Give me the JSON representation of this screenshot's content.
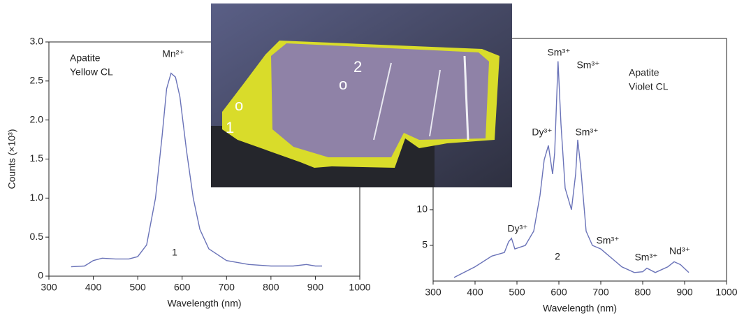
{
  "chart_data": [
    {
      "type": "line",
      "x_label": "Wavelength (nm)",
      "y_label": "Counts (×10³)",
      "annotations": [
        "Apatite",
        "Yellow CL",
        "Mn²⁺",
        "1"
      ],
      "x": [
        350,
        380,
        400,
        420,
        450,
        480,
        500,
        520,
        540,
        555,
        565,
        575,
        585,
        595,
        610,
        625,
        640,
        660,
        700,
        750,
        800,
        850,
        880,
        900,
        915
      ],
      "values": [
        0.12,
        0.13,
        0.2,
        0.23,
        0.22,
        0.22,
        0.25,
        0.4,
        1.0,
        1.8,
        2.4,
        2.6,
        2.55,
        2.3,
        1.6,
        1.0,
        0.6,
        0.35,
        0.2,
        0.15,
        0.13,
        0.13,
        0.15,
        0.13,
        0.13
      ],
      "color": "#6a73b8",
      "xlim": [
        300,
        1000
      ],
      "xticks": [
        300,
        400,
        500,
        600,
        700,
        800,
        900,
        1000
      ],
      "ylim": [
        0,
        3
      ],
      "yticks": [
        0,
        0.5,
        {
          "value": 1,
          "label": "1.0"
        },
        1.5,
        {
          "value": 2,
          "label": "2.0"
        },
        2.5,
        {
          "value": 3,
          "label": "3.0"
        }
      ]
    },
    {
      "type": "line",
      "x_label": "Wavelength (nm)",
      "annotations": [
        "Apatite",
        "Violet CL",
        "Sm³⁺",
        "Sm³⁺",
        "Dy³⁺",
        "Sm³⁺",
        "Dy³⁺",
        "Sm³⁺",
        "2",
        "Sm³⁺",
        "Nd³⁺"
      ],
      "x": [
        350,
        400,
        440,
        470,
        480,
        487,
        495,
        520,
        540,
        555,
        565,
        575,
        585,
        590,
        598,
        605,
        615,
        630,
        640,
        645,
        652,
        665,
        680,
        700,
        710,
        730,
        750,
        780,
        800,
        810,
        830,
        860,
        875,
        890,
        910
      ],
      "values": [
        0.5,
        2,
        3.5,
        4,
        5.5,
        6,
        4.5,
        5,
        7,
        12,
        17,
        19,
        15,
        18,
        30.8,
        22,
        13,
        10,
        15,
        19.8,
        16,
        7,
        5,
        4.5,
        4,
        3,
        2,
        1.2,
        1.3,
        1.8,
        1.2,
        2,
        2.7,
        2.3,
        1.2
      ],
      "color": "#6a73b8",
      "xlim": [
        300,
        1000
      ],
      "xticks": [
        300,
        400,
        500,
        600,
        700,
        800,
        900,
        1000
      ],
      "ylim": [
        0,
        34
      ],
      "yticks": [
        5,
        10
      ]
    }
  ],
  "photo": {
    "labels": [
      "1",
      "o",
      "2",
      "o"
    ]
  }
}
